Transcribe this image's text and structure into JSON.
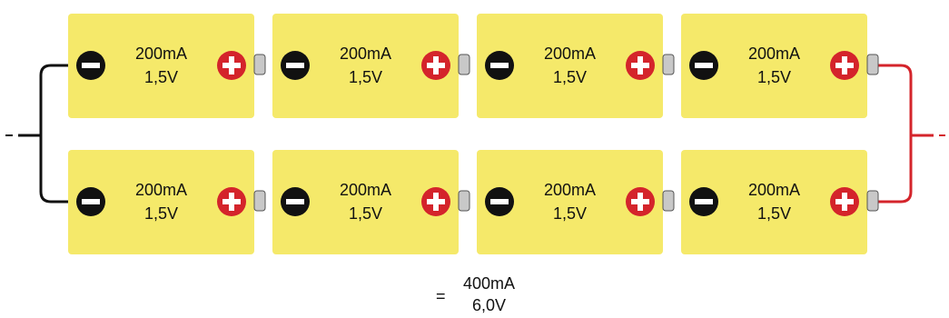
{
  "circuit": {
    "rows": [
      {
        "batteries": [
          {
            "current": "200mA",
            "voltage": "1,5V"
          },
          {
            "current": "200mA",
            "voltage": "1,5V"
          },
          {
            "current": "200mA",
            "voltage": "1,5V"
          },
          {
            "current": "200mA",
            "voltage": "1,5V"
          }
        ]
      },
      {
        "batteries": [
          {
            "current": "200mA",
            "voltage": "1,5V"
          },
          {
            "current": "200mA",
            "voltage": "1,5V"
          },
          {
            "current": "200mA",
            "voltage": "1,5V"
          },
          {
            "current": "200mA",
            "voltage": "1,5V"
          }
        ]
      }
    ],
    "colors": {
      "battery_body": "#f5e96a",
      "negative_terminal": "#111111",
      "positive_terminal": "#d4242b",
      "negative_wire": "#111111",
      "positive_wire": "#d4242b",
      "cap": "#c8c8c8"
    }
  },
  "result": {
    "equals": "=",
    "current": "400mA",
    "voltage": "6,0V"
  }
}
